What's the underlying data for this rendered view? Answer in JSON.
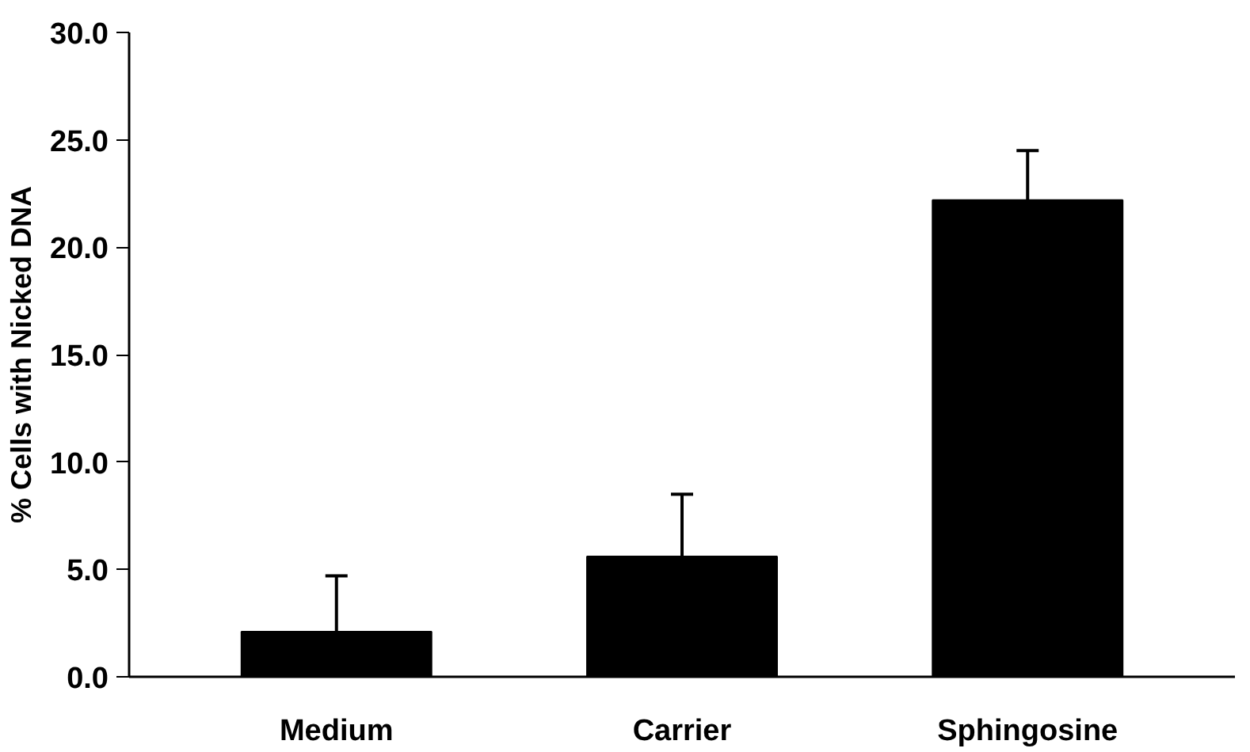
{
  "chart_data": {
    "type": "bar",
    "ylabel": "% Cells with Nicked DNA",
    "categories": [
      "Medium",
      "Carrier",
      "Sphingosine"
    ],
    "values": [
      2.1,
      5.6,
      22.2
    ],
    "errors": [
      [
        2.1,
        4.7
      ],
      [
        5.6,
        8.5
      ],
      [
        22.2,
        24.5
      ]
    ],
    "color": "#000000",
    "ylim": [
      0,
      30
    ],
    "yticks": [
      {
        "value": 0,
        "label": "0.0"
      },
      {
        "value": 5,
        "label": "5.0"
      },
      {
        "value": 10,
        "label": "10.0"
      },
      {
        "value": 15,
        "label": "15.0"
      },
      {
        "value": 20,
        "label": "20.0"
      },
      {
        "value": 25,
        "label": "25.0"
      },
      {
        "value": 30,
        "label": "30.0"
      }
    ],
    "grid": false
  }
}
